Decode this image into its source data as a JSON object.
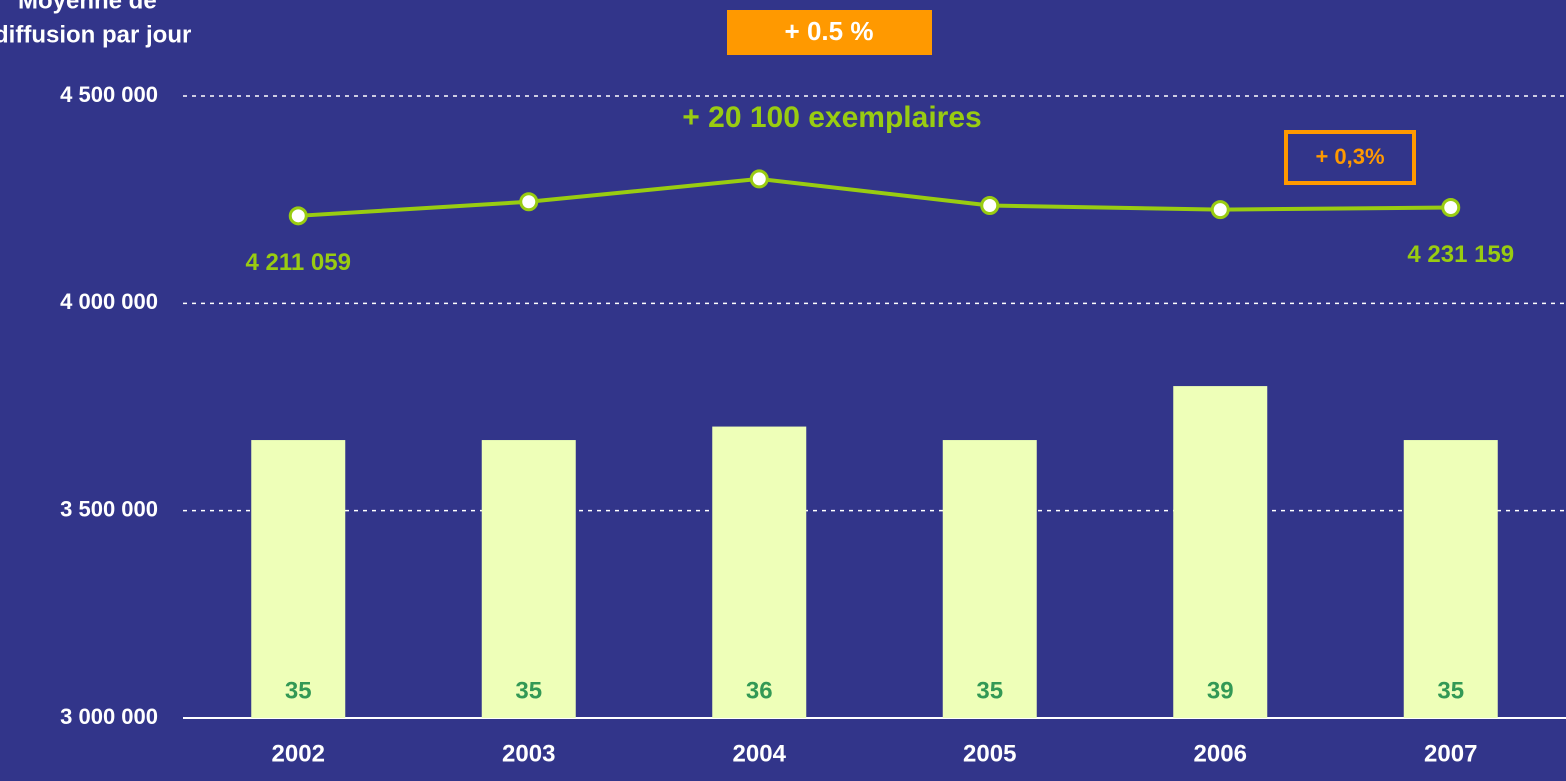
{
  "chart_data": {
    "type": "combo",
    "y_label": [
      "Moyenne de",
      "diffusion par jour"
    ],
    "annotations": [
      "+ 0.5 %",
      "+ 20 100 exemplaires",
      "+ 0,3%"
    ],
    "categories": [
      "2002",
      "2003",
      "2004",
      "2005",
      "2006",
      "2007"
    ],
    "series": [
      {
        "type": "bar",
        "axis": "y2",
        "color": "#eeffb8",
        "label_color": "#339955",
        "values": [
          35,
          35,
          36,
          35,
          39,
          35
        ]
      },
      {
        "type": "line",
        "color": "#99cc11",
        "values": [
          4211059,
          4245000,
          4300000,
          4236000,
          4226000,
          4231159
        ],
        "value_labels": [
          "4 211 059",
          null,
          null,
          null,
          null,
          "4 231 159"
        ]
      }
    ],
    "ylim": [
      3000000,
      4500000
    ],
    "yticks": [
      {
        "value": 3000000,
        "label": "3 000 000"
      },
      {
        "value": 3500000,
        "label": "3 500 000"
      },
      {
        "value": 4000000,
        "label": "4 000 000"
      },
      {
        "value": 4500000,
        "label": "4 500 000"
      }
    ],
    "y2lim": [
      14.4,
      60.5
    ],
    "grid": true,
    "background": "#32358a",
    "accent": "#ff9900"
  }
}
